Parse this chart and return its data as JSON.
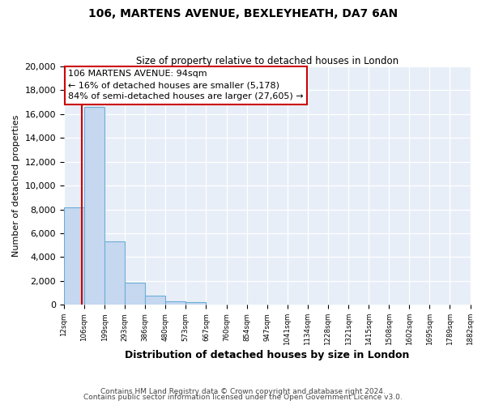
{
  "title": "106, MARTENS AVENUE, BEXLEYHEATH, DA7 6AN",
  "subtitle": "Size of property relative to detached houses in London",
  "xlabel": "Distribution of detached houses by size in London",
  "ylabel": "Number of detached properties",
  "n_bins": 20,
  "bar_heights": [
    8200,
    16600,
    5300,
    1850,
    750,
    300,
    200,
    0,
    0,
    0,
    0,
    0,
    0,
    0,
    0,
    0,
    0,
    0,
    0,
    0
  ],
  "property_bin": 0.94,
  "pct_smaller": 16,
  "n_smaller": 5178,
  "pct_larger": 84,
  "n_larger": 27605,
  "bar_color": "#c5d8f0",
  "bar_edge_color": "#6baed6",
  "line_color": "#cc0000",
  "annotation_box_edge": "#cc0000",
  "ylim": [
    0,
    20000
  ],
  "yticks": [
    0,
    2000,
    4000,
    6000,
    8000,
    10000,
    12000,
    14000,
    16000,
    18000,
    20000
  ],
  "tick_labels": [
    "12sqm",
    "106sqm",
    "199sqm",
    "293sqm",
    "386sqm",
    "480sqm",
    "573sqm",
    "667sqm",
    "760sqm",
    "854sqm",
    "947sqm",
    "1041sqm",
    "1134sqm",
    "1228sqm",
    "1321sqm",
    "1415sqm",
    "1508sqm",
    "1602sqm",
    "1695sqm",
    "1789sqm",
    "1882sqm"
  ],
  "footer_line1": "Contains HM Land Registry data © Crown copyright and database right 2024.",
  "footer_line2": "Contains public sector information licensed under the Open Government Licence v3.0.",
  "background_color": "#ffffff",
  "plot_bg_color": "#e8eef8",
  "grid_color": "#ffffff"
}
